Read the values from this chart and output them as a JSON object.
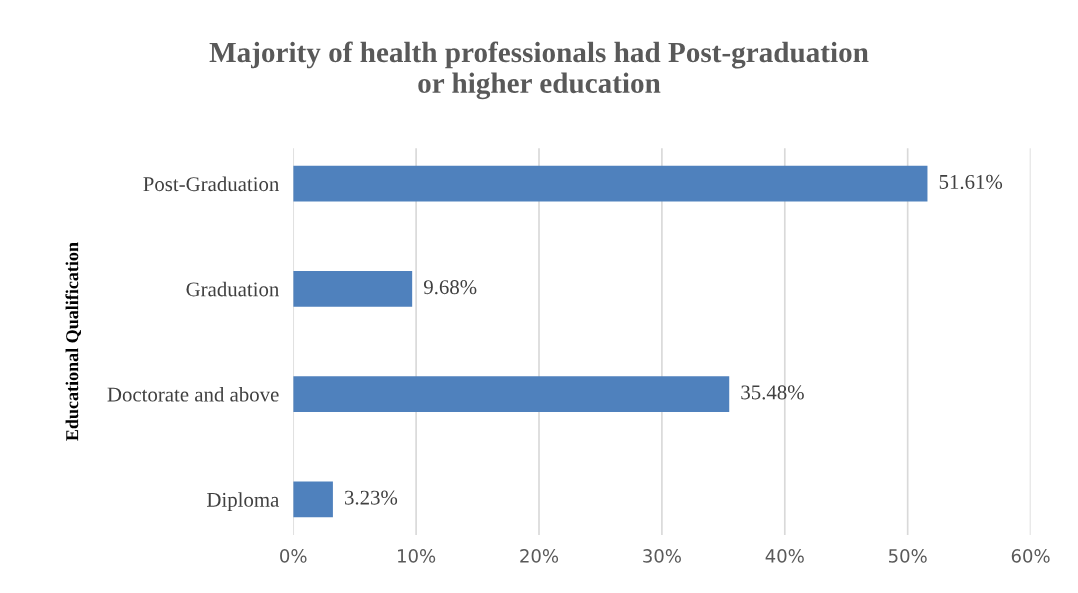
{
  "chart_data": {
    "type": "bar",
    "orientation": "horizontal",
    "title": "Majority of health professionals had Post-graduation or higher education",
    "ylabel": "Educational Qualification",
    "categories": [
      "Post-Graduation",
      "Graduation",
      "Doctorate and above",
      "Diploma"
    ],
    "values": [
      51.61,
      9.68,
      35.48,
      3.23
    ],
    "value_labels": [
      "51.61%",
      "9.68%",
      "35.48%",
      "3.23%"
    ],
    "color": "#4f81bd",
    "xlim": [
      0,
      60
    ],
    "xticks": [
      {
        "value": 0,
        "label": "0%"
      },
      {
        "value": 10,
        "label": "10%"
      },
      {
        "value": 20,
        "label": "20%"
      },
      {
        "value": 30,
        "label": "30%"
      },
      {
        "value": 40,
        "label": "40%"
      },
      {
        "value": 50,
        "label": "50%"
      },
      {
        "value": 60,
        "label": "60%"
      }
    ],
    "grid": "x"
  }
}
